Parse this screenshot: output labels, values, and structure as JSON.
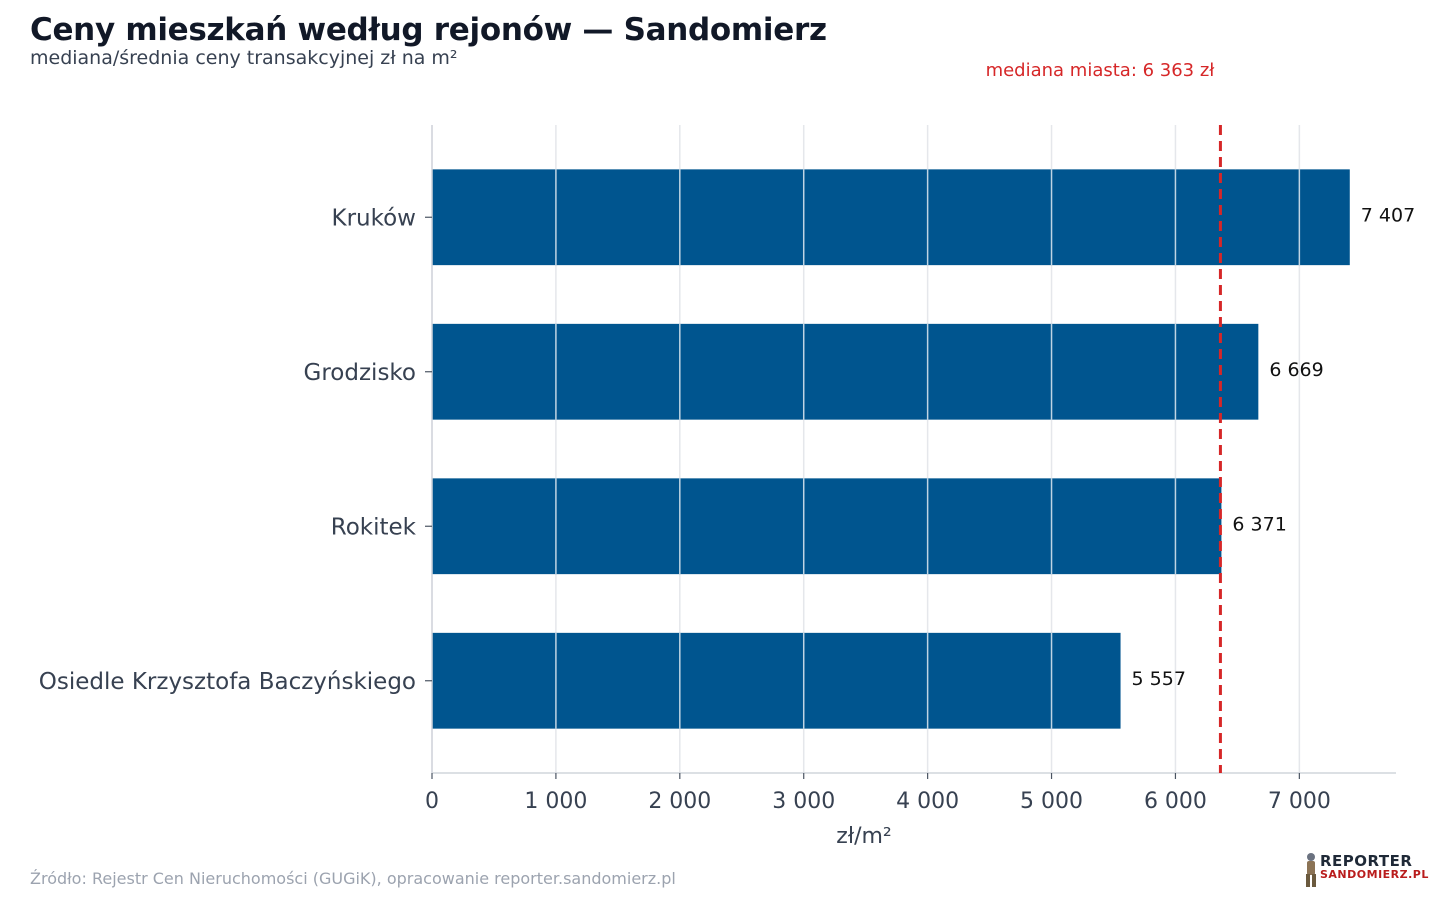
{
  "header": {
    "title": "Ceny mieszkań według rejonów — Sandomierz",
    "subtitle": "mediana/średnia ceny transakcyjnej zł na m²"
  },
  "footer": {
    "source": "Źródło: Rejestr Cen Nieruchomości (GUGiK), opracowanie reporter.sandomierz.pl"
  },
  "logo": {
    "line1": "REPORTER",
    "line2": "SANDOMIERZ.PL"
  },
  "colors": {
    "bar": "#00558f",
    "median_line": "#d62728",
    "grid": "#e5e7eb",
    "label": "#374151"
  },
  "chart_data": {
    "type": "bar",
    "orientation": "horizontal",
    "categories": [
      "Kruków",
      "Grodzisko",
      "Rokitek",
      "Osiedle Krzysztofa Baczyńskiego"
    ],
    "values": [
      7407,
      6669,
      6371,
      5557
    ],
    "value_labels": [
      "7 407",
      "6 669",
      "6 371",
      "5 557"
    ],
    "xlabel": "zł/m²",
    "xlim": [
      0,
      7780
    ],
    "xticks": [
      0,
      1000,
      2000,
      3000,
      4000,
      5000,
      6000,
      7000
    ],
    "xtick_labels": [
      "0",
      "1 000",
      "2 000",
      "3 000",
      "4 000",
      "5 000",
      "6 000",
      "7 000"
    ],
    "grid": true,
    "reference_line": {
      "value": 6363,
      "label": "mediana miasta: 6 363 zł",
      "style": "dashed"
    }
  }
}
